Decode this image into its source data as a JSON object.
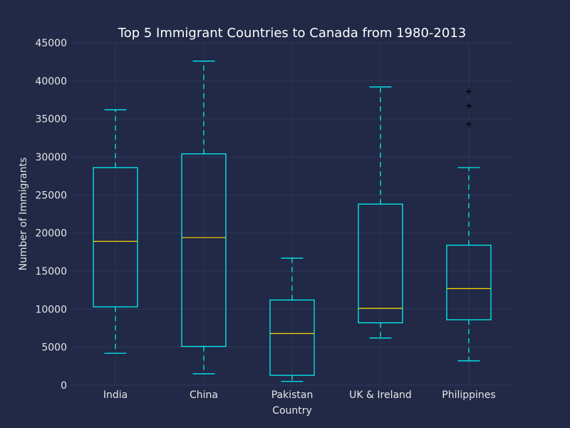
{
  "chart_data": {
    "type": "box",
    "title": "Top 5 Immigrant Countries to Canada from 1980-2013",
    "xlabel": "Country",
    "ylabel": "Number of Immigrants",
    "ylim": [
      0,
      45000
    ],
    "yticks": [
      0,
      5000,
      10000,
      15000,
      20000,
      25000,
      30000,
      35000,
      40000,
      45000
    ],
    "ytick_labels": [
      "0",
      "5000",
      "10000",
      "15000",
      "20000",
      "25000",
      "30000",
      "35000",
      "40000",
      "45000"
    ],
    "grid": true,
    "colors": {
      "box": "#00ffff",
      "median": "#ffd700",
      "flier": "#000000",
      "grid": "#2d3657"
    },
    "categories": [
      "India",
      "China",
      "Pakistan",
      "UK & Ireland",
      "Philippines"
    ],
    "boxes": [
      {
        "name": "India",
        "min": 4200,
        "q1": 10300,
        "median": 18900,
        "q3": 28600,
        "max": 36200,
        "fliers": []
      },
      {
        "name": "China",
        "min": 1500,
        "q1": 5100,
        "median": 19400,
        "q3": 30400,
        "max": 42600,
        "fliers": []
      },
      {
        "name": "Pakistan",
        "min": 500,
        "q1": 1300,
        "median": 6800,
        "q3": 11200,
        "max": 16700,
        "fliers": []
      },
      {
        "name": "UK & Ireland",
        "min": 6200,
        "q1": 8200,
        "median": 10100,
        "q3": 23800,
        "max": 39200,
        "fliers": []
      },
      {
        "name": "Philippines",
        "min": 3200,
        "q1": 8600,
        "median": 12700,
        "q3": 18400,
        "max": 28600,
        "fliers": [
          34300,
          36700,
          38600
        ]
      }
    ]
  }
}
